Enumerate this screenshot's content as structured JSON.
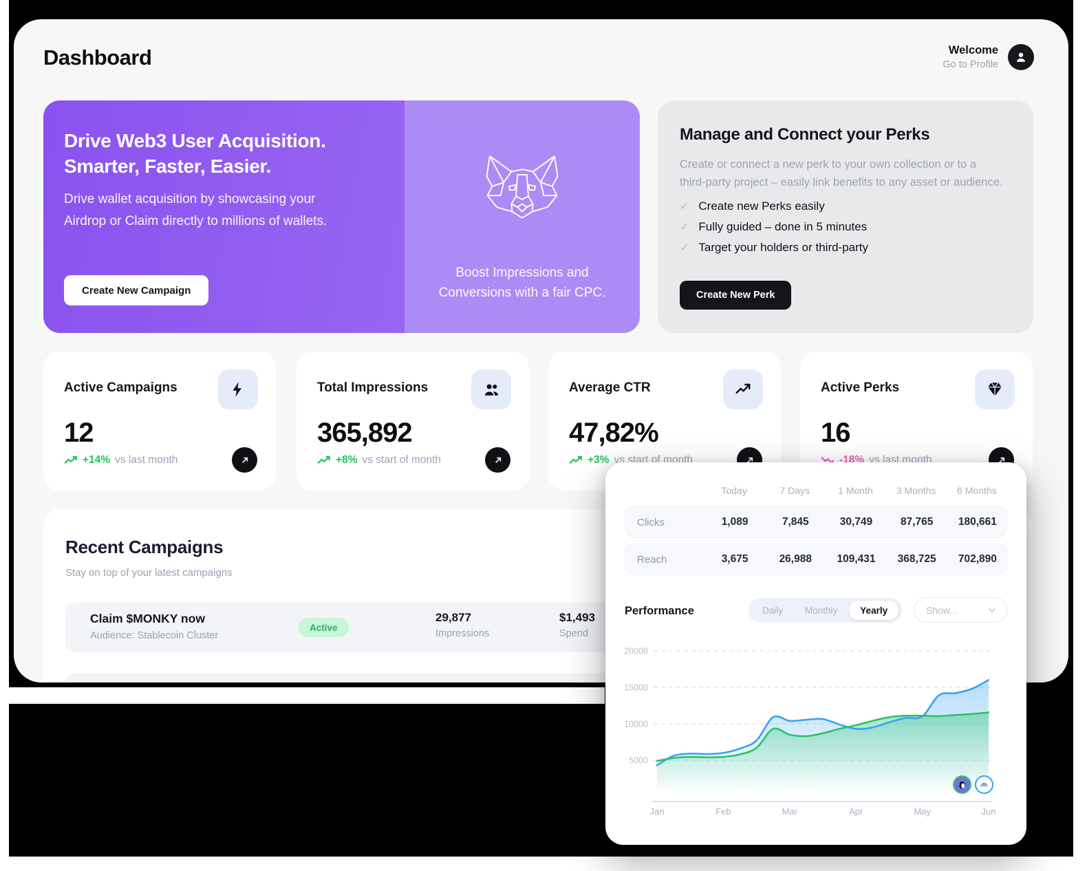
{
  "page": {
    "title": "Dashboard"
  },
  "header": {
    "welcome": "Welcome",
    "profile_link": "Go to Profile"
  },
  "hero": {
    "title_line1": "Drive Web3 User Acquisition.",
    "title_line2": "Smarter, Faster, Easier.",
    "description_line1": "Drive wallet acquisition by showcasing your",
    "description_line2": "Airdrop or Claim directly to millions of wallets.",
    "cta": "Create New Campaign",
    "side_caption_line1": "Boost Impressions and",
    "side_caption_line2": "Conversions with a fair CPC."
  },
  "perks": {
    "title": "Manage and Connect your Perks",
    "description": "Create or connect a new perk to your own collection or to a third-party project – easily link benefits to any asset or audience.",
    "items": [
      "Create new Perks easily",
      "Fully guided – done in 5 minutes",
      "Target your holders or third-party"
    ],
    "cta": "Create New Perk"
  },
  "stats": [
    {
      "label": "Active Campaigns",
      "icon": "bolt-icon",
      "value": "12",
      "delta": "+14%",
      "direction": "up",
      "suffix": "vs last month"
    },
    {
      "label": "Total Impressions",
      "icon": "people-icon",
      "value": "365,892",
      "delta": "+8%",
      "direction": "up",
      "suffix": "vs start of month"
    },
    {
      "label": "Average CTR",
      "icon": "trend-up-icon",
      "value": "47,82%",
      "delta": "+3%",
      "direction": "up",
      "suffix": "vs start of month"
    },
    {
      "label": "Active Perks",
      "icon": "gem-icon",
      "value": "16",
      "delta": "-18%",
      "direction": "down",
      "suffix": "vs last month"
    }
  ],
  "recent_campaigns": {
    "title": "Recent Campaigns",
    "subtitle": "Stay on top of your latest campaigns",
    "rows": [
      {
        "name": "Claim $MONKY now",
        "audience": "Audience: Stablecoin Cluster",
        "status": "Active",
        "impressions": "29,877",
        "impressions_label": "Impressions",
        "spend": "$1,493",
        "spend_label": "Spend"
      }
    ]
  },
  "overlay": {
    "table": {
      "columns": [
        "Today",
        "7 Days",
        "1 Month",
        "3 Months",
        "6 Months"
      ],
      "rows": [
        {
          "label": "Clicks",
          "values": [
            "1,089",
            "7,845",
            "30,749",
            "87,765",
            "180,661"
          ]
        },
        {
          "label": "Reach",
          "values": [
            "3,675",
            "26,988",
            "109,431",
            "368,725",
            "702,890"
          ]
        }
      ]
    },
    "performance": {
      "title": "Performance",
      "tabs": [
        "Daily",
        "Monthly",
        "Yearly"
      ],
      "active_tab": "Yearly",
      "filter_placeholder": "Show..."
    }
  },
  "chart_data": {
    "type": "area",
    "x_labels": [
      "Jan",
      "Feb",
      "Mar",
      "Apr",
      "May",
      "Jun"
    ],
    "y_ticks": [
      20000,
      15000,
      10000,
      5000
    ],
    "ylim": [
      0,
      21000
    ],
    "grid": "horizontal-dashed",
    "legend_position": "bottom-right-avatars",
    "series": [
      {
        "name": "clicks",
        "color": "#36a2f5",
        "fill": "#bfe2fb",
        "values": [
          4300,
          5600,
          5900,
          5850,
          6000,
          6600,
          7700,
          10900,
          10400,
          10550,
          10650,
          9900,
          9300,
          9500,
          10200,
          10800,
          11000,
          13900,
          14200,
          14800,
          16000
        ]
      },
      {
        "name": "reach",
        "color": "#2ac268",
        "fill": "#9fe3c2",
        "values": [
          4900,
          5300,
          5450,
          5400,
          5450,
          5800,
          6700,
          9300,
          8500,
          8300,
          8700,
          9300,
          9800,
          10400,
          10900,
          11100,
          11100,
          11050,
          11200,
          11350,
          11550
        ]
      }
    ]
  },
  "colors": {
    "hero_purple_left": "#8a52ef",
    "hero_purple_right": "#ac8bf5",
    "positive": "#22c55e",
    "negative": "#ec5fb4",
    "status_active_bg": "#c9f5d9",
    "status_active_text": "#2fae63",
    "icon_tile": "#e6ebfa"
  }
}
